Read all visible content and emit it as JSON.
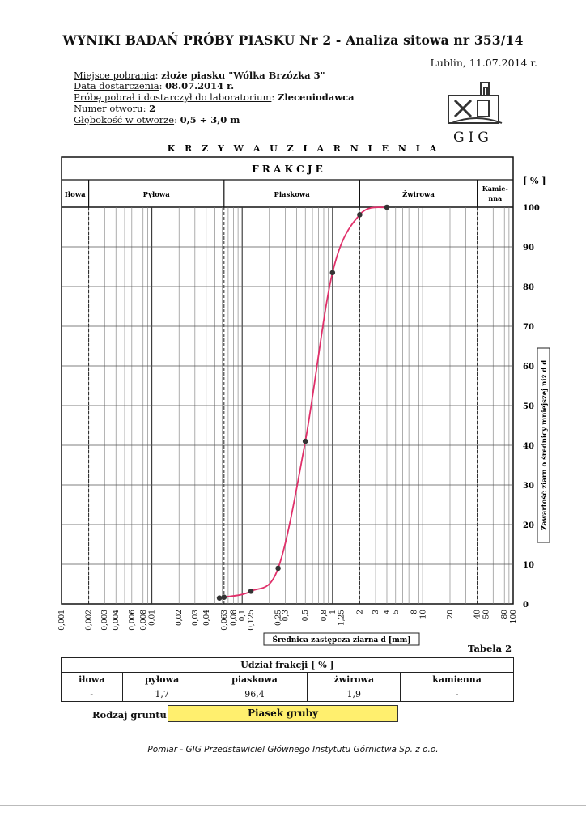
{
  "header": {
    "title": "WYNIKI BADAŃ PRÓBY PIASKU Nr 2 - Analiza sitowa nr 353/14",
    "place_date": "Lublin, 11.07.2014 r."
  },
  "meta": [
    {
      "label": "Miejsce pobrania",
      "value": "złoże piasku \"Wólka Brzózka 3\""
    },
    {
      "label": "Data dostarczenia",
      "value": "08.07.2014 r."
    },
    {
      "label": "Próbę pobrał i dostarczył do laboratorium",
      "value": "Zleceniodawca"
    },
    {
      "label": "Numer otworu",
      "value": "2"
    },
    {
      "label": "Głębokość w otworze",
      "value": "0,5 ÷ 3,0 m"
    }
  ],
  "logo": {
    "text": "GIG",
    "icon": "hammer-pick-logo-icon"
  },
  "chart_data": {
    "type": "line",
    "title": "KRZYWA UZIARNIENIA",
    "fractions_title": "FRAKCJE",
    "fraction_bands": [
      {
        "name": "Iłowa",
        "from": 0.001,
        "to": 0.002
      },
      {
        "name": "Pyłowa",
        "from": 0.002,
        "to": 0.063
      },
      {
        "name": "Piaskowa",
        "from": 0.063,
        "to": 2
      },
      {
        "name": "Żwirowa",
        "from": 2,
        "to": 40
      },
      {
        "name": "Kamie-nna",
        "from": 40,
        "to": 100
      }
    ],
    "xlabel": "Średnica zastępcza ziarna d [mm]",
    "ylabel": "Zawartość ziarn o średnicy mniejszej niż d",
    "yunit": "[ % ]",
    "x_scale": "log",
    "xlim": [
      0.001,
      100
    ],
    "ylim": [
      0,
      100
    ],
    "x_ticks": [
      "0,001",
      "0,002",
      "0,003",
      "0,004",
      "0,006",
      "0,008",
      "0,01",
      "0,02",
      "0,03",
      "0,04",
      "0,063",
      "0,08",
      "0,1",
      "0,125",
      "0,25",
      "0,3",
      "0,5",
      "0,8",
      "1",
      "1,25",
      "2",
      "3",
      "4",
      "5",
      "8",
      "10",
      "20",
      "40",
      "50",
      "80",
      "100"
    ],
    "x_tick_values": [
      0.001,
      0.002,
      0.003,
      0.004,
      0.006,
      0.008,
      0.01,
      0.02,
      0.03,
      0.04,
      0.063,
      0.08,
      0.1,
      0.125,
      0.25,
      0.3,
      0.5,
      0.8,
      1,
      1.25,
      2,
      3,
      4,
      5,
      8,
      10,
      20,
      40,
      50,
      80,
      100
    ],
    "y_ticks": [
      0,
      10,
      20,
      30,
      40,
      50,
      60,
      70,
      80,
      90,
      100
    ],
    "series": [
      {
        "color": "#e0306a",
        "points": [
          {
            "x": 0.056,
            "y": 1.5
          },
          {
            "x": 0.063,
            "y": 1.7
          },
          {
            "x": 0.125,
            "y": 3.2
          },
          {
            "x": 0.25,
            "y": 9
          },
          {
            "x": 0.5,
            "y": 41
          },
          {
            "x": 1.0,
            "y": 83.5
          },
          {
            "x": 2.0,
            "y": 98.1
          },
          {
            "x": 4.0,
            "y": 100
          }
        ]
      }
    ],
    "grid": true
  },
  "table": {
    "caption": "Tabela 2",
    "title": "Udział frakcji [ % ]",
    "headers": [
      "iłowa",
      "pyłowa",
      "piaskowa",
      "żwirowa",
      "kamienna"
    ],
    "values": [
      "-",
      "1,7",
      "96,4",
      "1,9",
      "-"
    ]
  },
  "soil": {
    "label": "Rodzaj gruntu",
    "value": "Piasek gruby",
    "color": "#ffef6e"
  },
  "footer": "Pomiar - GIG Przedstawiciel Głównego Instytutu Górnictwa Sp. z o.o."
}
